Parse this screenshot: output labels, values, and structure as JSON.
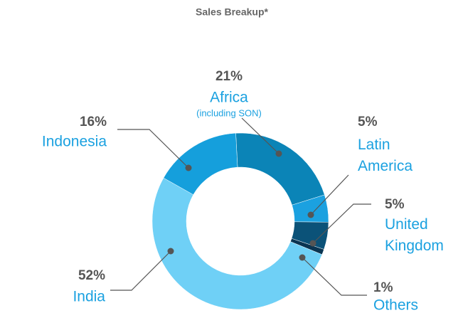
{
  "chart_data": {
    "type": "donut",
    "title": "Sales Breakup*",
    "categories": [
      "Africa",
      "Latin America",
      "United Kingdom",
      "Others",
      "India",
      "Indonesia"
    ],
    "values": [
      21,
      5,
      5,
      1,
      52,
      16
    ],
    "value_labels": [
      "21%",
      "5%",
      "5%",
      "1%",
      "52%",
      "16%"
    ],
    "colors": [
      "#0b84b7",
      "#1ba1e0",
      "#0b5278",
      "#0a3552",
      "#6fd0f6",
      "#159fdc"
    ],
    "annotation": "(including SON)"
  }
}
